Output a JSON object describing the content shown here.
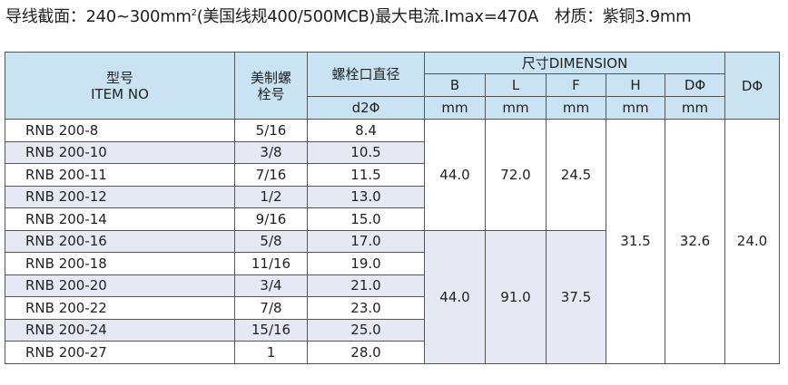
{
  "header": {
    "title": [
      "导线截面：240~300mm",
      "2",
      "(美国线规400/500MCB)最大电流.Imax=470A　材质：紫铜3.9mm"
    ]
  },
  "table": {
    "head": {
      "model": [
        "型号",
        "ITEM NO"
      ],
      "bolt": [
        "美制螺",
        "栓号"
      ],
      "diameter": "螺栓口直径",
      "diameter_unit": "d2Φ",
      "dimension": "尺寸DIMENSION",
      "cols": [
        "B",
        "L",
        "F",
        "H",
        "DΦ"
      ],
      "units": [
        "mm",
        "mm",
        "mm",
        "mm",
        "mm"
      ],
      "last": "DΦ"
    },
    "rows": [
      [
        "RNB 200-8",
        "5/16",
        "8.4"
      ],
      [
        "RNB 200-10",
        "3/8",
        "10.5"
      ],
      [
        "RNB 200-11",
        "7/16",
        "11.5"
      ],
      [
        "RNB 200-12",
        "1/2",
        "13.0"
      ],
      [
        "RNB 200-14",
        "9/16",
        "15.0"
      ],
      [
        "RNB 200-16",
        "5/8",
        "17.0"
      ],
      [
        "RNB 200-18",
        "11/16",
        "19.0"
      ],
      [
        "RNB 200-20",
        "3/4",
        "21.0"
      ],
      [
        "RNB 200-22",
        "7/8",
        "23.0"
      ],
      [
        "RNB 200-24",
        "15/16",
        "25.0"
      ],
      [
        "RNB 200-27",
        "1",
        "28.0"
      ]
    ],
    "groups": [
      {
        "size": 5,
        "values": [
          "44.0",
          "72.0",
          "24.5"
        ]
      },
      {
        "size": 6,
        "values": [
          "44.0",
          "91.0",
          "37.5"
        ]
      }
    ],
    "shared": [
      "31.5",
      "32.6",
      "24.0"
    ]
  }
}
